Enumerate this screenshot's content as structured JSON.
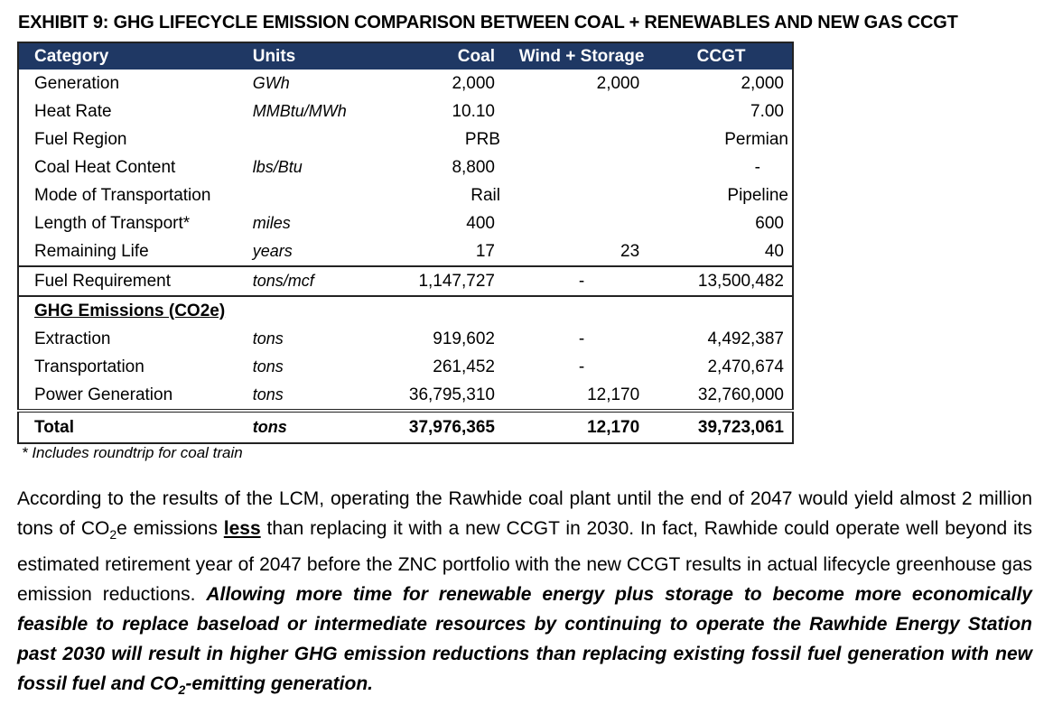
{
  "title": "EXHIBIT 9: GHG LIFECYCLE EMISSION COMPARISON BETWEEN COAL + RENEWABLES AND NEW GAS CCGT",
  "table": {
    "headers": [
      "Category",
      "Units",
      "Coal",
      "Wind + Storage",
      "CCGT"
    ],
    "rows": [
      {
        "category": "Generation",
        "units": "GWh",
        "coal": "2,000",
        "wind": "2,000",
        "ccgt": "2,000"
      },
      {
        "category": "Heat Rate",
        "units": "MMBtu/MWh",
        "coal": "10.10",
        "wind": "",
        "ccgt": "7.00"
      },
      {
        "category": "Fuel Region",
        "units": "",
        "coal": "PRB",
        "wind": "",
        "ccgt": "Permian"
      },
      {
        "category": "Coal Heat Content",
        "units": "lbs/Btu",
        "coal": "8,800",
        "wind": "",
        "ccgt": "-"
      },
      {
        "category": "Mode of Transportation",
        "units": "",
        "coal": "Rail",
        "wind": "",
        "ccgt": "Pipeline"
      },
      {
        "category": "Length of Transport*",
        "units": "miles",
        "coal": "400",
        "wind": "",
        "ccgt": "600"
      },
      {
        "category": "Remaining Life",
        "units": "years",
        "coal": "17",
        "wind": "23",
        "ccgt": "40"
      }
    ],
    "fuel_row": {
      "category": "Fuel Requirement",
      "units": "tons/mcf",
      "coal": "1,147,727",
      "wind": "-",
      "ccgt": "13,500,482"
    },
    "ghg_heading": "GHG Emissions (CO2e)",
    "ghg_rows": [
      {
        "category": "Extraction",
        "units": "tons",
        "coal": "919,602",
        "wind": "-",
        "ccgt": "4,492,387"
      },
      {
        "category": "Transportation",
        "units": "tons",
        "coal": "261,452",
        "wind": "-",
        "ccgt": "2,470,674"
      },
      {
        "category": "Power Generation",
        "units": "tons",
        "coal": "36,795,310",
        "wind": "12,170",
        "ccgt": "32,760,000"
      }
    ],
    "total_row": {
      "category": "Total",
      "units": "tons",
      "coal": "37,976,365",
      "wind": "12,170",
      "ccgt": "39,723,061"
    }
  },
  "footnote": "* Includes roundtrip for coal train",
  "paragraph": {
    "part1": "According to the results of the LCM, operating the Rawhide coal plant until the end of 2047 would yield almost 2 million tons of CO",
    "sub1": "2",
    "part2": "e emissions ",
    "less": "less",
    "part3": " than replacing it with a new CCGT in 2030.  In fact, Rawhide could operate well beyond its estimated retirement year of 2047 before the ZNC portfolio with the new CCGT results in actual lifecycle greenhouse gas emission reductions.  ",
    "emph1": "Allowing more time for renewable energy plus storage to become more economically feasible to replace baseload or intermediate resources by continuing to operate the Rawhide Energy Station past 2030 will result in higher GHG emission reductions than replacing existing fossil fuel generation with new fossil fuel and CO",
    "sub2": "2",
    "emph2": "-emitting generation."
  }
}
